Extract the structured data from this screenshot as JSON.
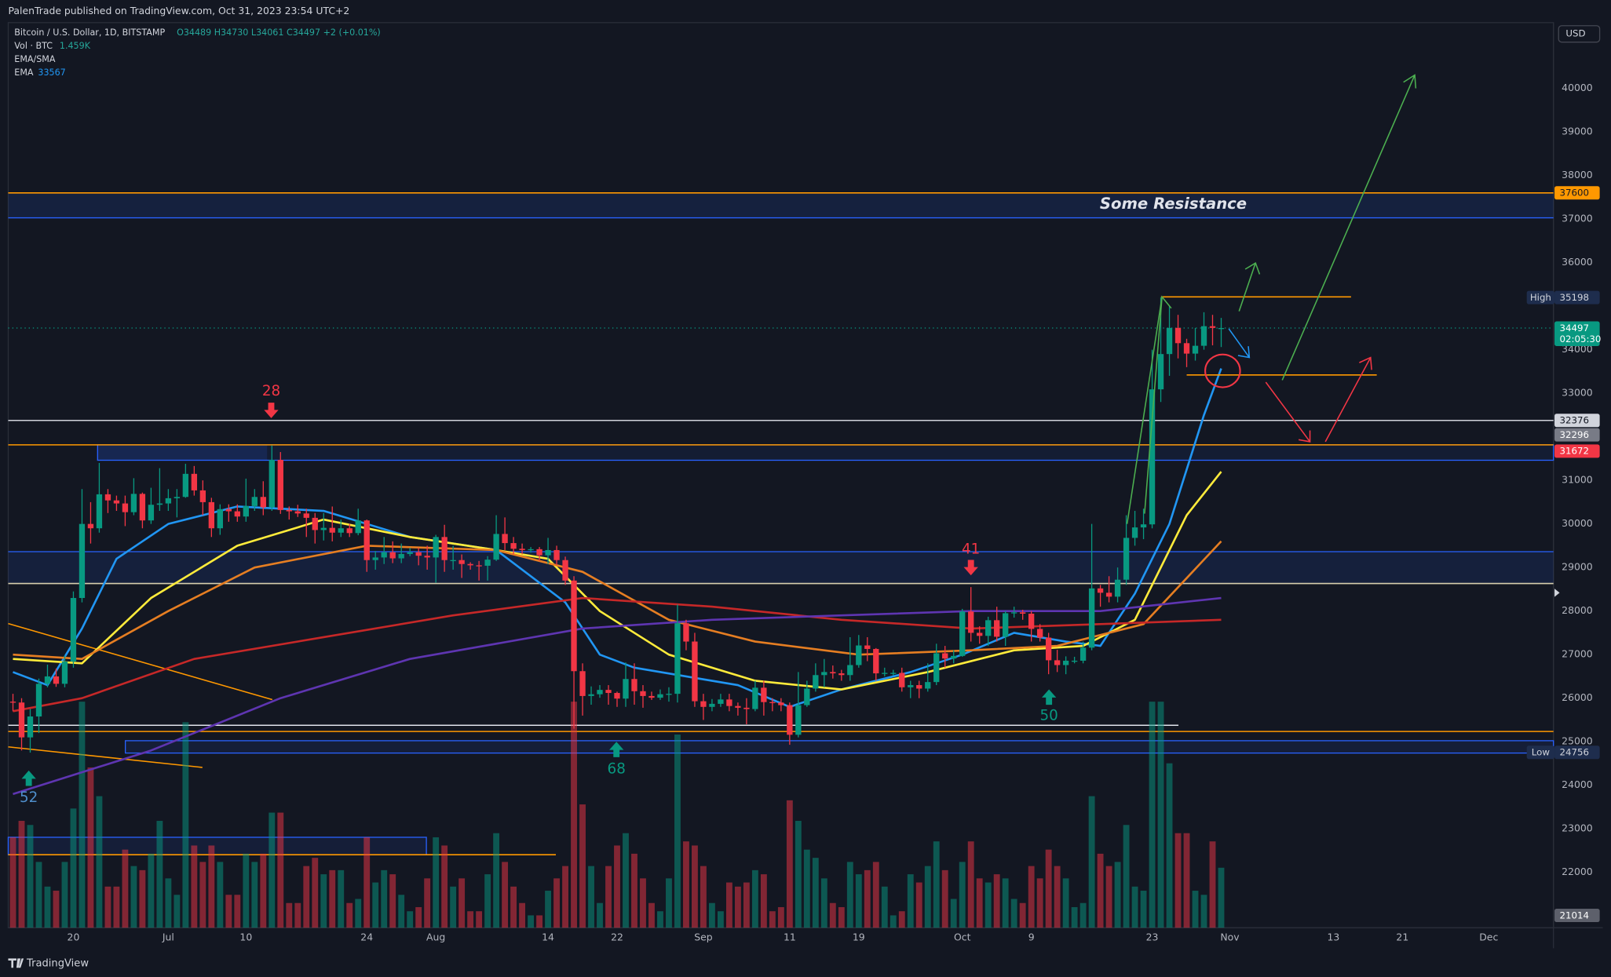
{
  "header": {
    "publisher": "PalenTrade published on TradingView.com, Oct 31, 2023 23:54 UTC+2"
  },
  "footer": {
    "brand": "TradingView"
  },
  "chart_data": {
    "type": "candlestick",
    "legend": {
      "symbol": "Bitcoin / U.S. Dollar, 1D, BITSTAMP",
      "ohlc": "O34489 H34730 L34061 C34497 +2 (+0.01%)",
      "vol": "Vol · BTC",
      "vol_value": "1.459K",
      "ema_sma": "EMA/SMA",
      "ema": "EMA"
    },
    "currency": "USD",
    "resistance_label": "Some Resistance",
    "annotations": [
      28,
      41,
      50,
      68,
      52
    ],
    "up_color": "#089981",
    "down_color": "#f23645",
    "xlim": [
      163.45,
      342.5
    ],
    "ylim": [
      20731,
      41509
    ],
    "volume_lim": [
      0,
      8
    ],
    "xticks": [
      {
        "value": 171,
        "label": "20"
      },
      {
        "value": 182,
        "label": "Jul"
      },
      {
        "value": 191,
        "label": "10"
      },
      {
        "value": 205,
        "label": "24"
      },
      {
        "value": 213,
        "label": "Aug"
      },
      {
        "value": 226,
        "label": "14"
      },
      {
        "value": 234,
        "label": "22"
      },
      {
        "value": 244,
        "label": "Sep"
      },
      {
        "value": 254,
        "label": "11"
      },
      {
        "value": 262,
        "label": "19"
      },
      {
        "value": 274,
        "label": "Oct"
      },
      {
        "value": 282,
        "label": "9"
      },
      {
        "value": 296,
        "label": "23"
      },
      {
        "value": 305,
        "label": "Nov"
      },
      {
        "value": 317,
        "label": "13"
      },
      {
        "value": 325,
        "label": "21"
      },
      {
        "value": 335,
        "label": "Dec"
      }
    ],
    "yticks": [
      22000,
      23000,
      24000,
      25000,
      26000,
      27000,
      28000,
      29000,
      30000,
      31000,
      32000,
      33000,
      34000,
      35000,
      36000,
      37000,
      38000,
      39000,
      40000
    ],
    "price_labels": [
      {
        "value": 37600,
        "color": "#ff9800",
        "text_color": "#131722",
        "line_style": "solid"
      },
      {
        "value": 35198,
        "tag": "High",
        "color": "#1e2d4d",
        "text_color": "#d1d4dc"
      },
      {
        "value": 34497,
        "sub": "02:05:30",
        "color": "#089981",
        "text_color": "#ffffff",
        "line_style": "dotted"
      },
      {
        "value": 32376,
        "color": "#d1d4dc",
        "text_color": "#131722",
        "line_style": "solid"
      },
      {
        "value": 32296,
        "color": "#787b86",
        "text_color": "#ffffff"
      },
      {
        "value": 31672,
        "color": "#f23645",
        "text_color": "#ffffff"
      },
      {
        "value": 24756,
        "tag": "Low",
        "color": "#1e2d4d",
        "text_color": "#d1d4dc"
      },
      {
        "value": 21014,
        "color": "#5d606b",
        "text_color": "#ffffff"
      }
    ],
    "x": [
      164,
      165,
      166,
      167,
      168,
      169,
      170,
      171,
      172,
      173,
      174,
      175,
      176,
      177,
      178,
      179,
      180,
      181,
      182,
      183,
      184,
      185,
      186,
      187,
      188,
      189,
      190,
      191,
      192,
      193,
      194,
      195,
      196,
      197,
      198,
      199,
      200,
      201,
      202,
      203,
      204,
      205,
      206,
      207,
      208,
      209,
      210,
      211,
      212,
      213,
      214,
      215,
      216,
      217,
      218,
      219,
      220,
      221,
      222,
      223,
      224,
      225,
      226,
      227,
      228,
      229,
      230,
      231,
      232,
      233,
      234,
      235,
      236,
      237,
      238,
      239,
      240,
      241,
      242,
      243,
      244,
      245,
      246,
      247,
      248,
      249,
      250,
      251,
      252,
      253,
      254,
      255,
      256,
      257,
      258,
      259,
      260,
      261,
      262,
      263,
      264,
      265,
      266,
      267,
      268,
      269,
      270,
      271,
      272,
      273,
      274,
      275,
      276,
      277,
      278,
      279,
      280,
      281,
      282,
      283,
      284,
      285,
      286,
      287,
      288,
      289,
      290,
      291,
      292,
      293,
      294,
      295,
      296,
      297,
      298,
      299,
      300,
      301,
      302,
      303,
      304
    ],
    "open": [
      25920,
      25900,
      25100,
      25580,
      26330,
      26500,
      26330,
      26840,
      28300,
      30000,
      29900,
      30680,
      30540,
      30470,
      30270,
      30690,
      30080,
      30440,
      30470,
      30590,
      30620,
      31150,
      30770,
      30500,
      29900,
      30340,
      30290,
      30170,
      30410,
      30620,
      30380,
      31470,
      30320,
      30290,
      30240,
      30140,
      29860,
      29910,
      29800,
      29900,
      29790,
      30080,
      29170,
      29230,
      29350,
      29210,
      29310,
      29350,
      29270,
      29230,
      29700,
      29170,
      29170,
      29080,
      29050,
      29040,
      29180,
      29770,
      29560,
      29430,
      29400,
      29420,
      29280,
      29400,
      29170,
      28700,
      26620,
      26050,
      26090,
      26190,
      26120,
      25990,
      26440,
      26160,
      26050,
      26010,
      26090,
      26100,
      27720,
      27300,
      25930,
      25800,
      25870,
      25970,
      25820,
      25780,
      25750,
      26240,
      25910,
      25900,
      25840,
      25160,
      25840,
      26220,
      26530,
      26600,
      26570,
      26530,
      26760,
      27210,
      27130,
      26570,
      26580,
      26580,
      26250,
      26300,
      26220,
      26370,
      27030,
      26910,
      26970,
      27990,
      27500,
      27430,
      27790,
      27410,
      27950,
      27970,
      27940,
      27590,
      27390,
      26870,
      26760,
      26860,
      26860,
      27160,
      28520,
      28420,
      28330,
      28720,
      29680,
      29920,
      29990,
      33090,
      33900,
      34500,
      34150,
      33910,
      34090,
      34540,
      34489
    ],
    "high": [
      26100,
      26000,
      25750,
      26450,
      26770,
      26680,
      26980,
      28450,
      30800,
      30500,
      31400,
      30800,
      30650,
      30650,
      31050,
      30720,
      30830,
      31280,
      30800,
      30800,
      31380,
      31330,
      31000,
      30600,
      30450,
      30450,
      30450,
      31040,
      30800,
      30980,
      31800,
      31650,
      30400,
      30440,
      30350,
      30250,
      30250,
      30400,
      30100,
      30000,
      30350,
      30100,
      29380,
      29700,
      29600,
      29550,
      29450,
      29450,
      29500,
      29750,
      29980,
      29500,
      29300,
      29120,
      29150,
      29260,
      30200,
      30150,
      29700,
      29550,
      29470,
      29470,
      29680,
      29500,
      29250,
      28800,
      26800,
      26270,
      26300,
      26300,
      26150,
      26820,
      26800,
      26300,
      26150,
      26200,
      26250,
      28150,
      27800,
      27500,
      26100,
      25980,
      26100,
      26100,
      25900,
      26000,
      26400,
      26400,
      26000,
      26000,
      25900,
      26600,
      26400,
      26800,
      26900,
      26750,
      26650,
      27400,
      27450,
      27400,
      27150,
      26700,
      26650,
      26700,
      26400,
      26400,
      26800,
      27250,
      27200,
      27100,
      28050,
      28550,
      27650,
      27870,
      28100,
      28000,
      28100,
      28030,
      28000,
      27700,
      27500,
      27110,
      26960,
      26950,
      27300,
      30000,
      28600,
      28800,
      29000,
      30200,
      30300,
      30350,
      34000,
      35198,
      35000,
      34800,
      34250,
      34500,
      34860,
      34800,
      34730
    ],
    "low": [
      25700,
      24800,
      24750,
      25200,
      26250,
      26260,
      26250,
      26700,
      28200,
      29550,
      29800,
      30250,
      30300,
      29950,
      30200,
      29900,
      30000,
      30300,
      30300,
      30150,
      30600,
      30650,
      30200,
      29700,
      29750,
      30050,
      30050,
      30050,
      30300,
      30200,
      30300,
      30230,
      30100,
      30160,
      29700,
      29550,
      29620,
      29600,
      29700,
      29700,
      29740,
      28900,
      28950,
      29080,
      29100,
      29100,
      29260,
      29050,
      28950,
      28650,
      28900,
      28950,
      28760,
      28950,
      28700,
      28700,
      29150,
      29400,
      29300,
      29300,
      29340,
      29150,
      29080,
      29050,
      28600,
      25300,
      25600,
      25850,
      26010,
      25850,
      25800,
      25800,
      25850,
      25780,
      25960,
      25960,
      25920,
      25900,
      27100,
      25800,
      25500,
      25700,
      25800,
      25700,
      25600,
      25400,
      25700,
      25600,
      25700,
      25700,
      24930,
      25100,
      25800,
      26150,
      26250,
      26450,
      26400,
      26400,
      26700,
      26850,
      26400,
      26500,
      26520,
      26150,
      26000,
      26000,
      26150,
      26300,
      26700,
      26800,
      26950,
      27300,
      27250,
      27200,
      27300,
      27200,
      27850,
      27800,
      27300,
      27300,
      26550,
      26600,
      26550,
      26800,
      26800,
      27100,
      28100,
      28200,
      28200,
      28600,
      29500,
      29650,
      29900,
      32800,
      33400,
      33800,
      33600,
      33750,
      34000,
      34100,
      34061
    ],
    "close": [
      25900,
      25100,
      25580,
      26330,
      26500,
      26330,
      26840,
      28300,
      30000,
      29900,
      30680,
      30540,
      30470,
      30270,
      30690,
      30080,
      30440,
      30470,
      30590,
      30620,
      31150,
      30770,
      30500,
      29900,
      30340,
      30290,
      30170,
      30410,
      30620,
      30380,
      31470,
      30320,
      30290,
      30240,
      30140,
      29860,
      29910,
      29800,
      29900,
      29790,
      30080,
      29170,
      29230,
      29350,
      29210,
      29310,
      29350,
      29270,
      29230,
      29700,
      29170,
      29170,
      29080,
      29050,
      29040,
      29180,
      29770,
      29560,
      29430,
      29400,
      29420,
      29280,
      29400,
      29170,
      28700,
      26620,
      26050,
      26090,
      26190,
      26120,
      25990,
      26440,
      26160,
      26050,
      26010,
      26090,
      26100,
      27720,
      27300,
      25930,
      25800,
      25870,
      25970,
      25820,
      25780,
      25750,
      26240,
      25910,
      25900,
      25840,
      25160,
      25840,
      26220,
      26530,
      26600,
      26570,
      26530,
      26760,
      27210,
      27130,
      26570,
      26580,
      26580,
      26250,
      26300,
      26220,
      26370,
      27030,
      26910,
      26970,
      27990,
      27500,
      27430,
      27790,
      27410,
      27950,
      27970,
      27940,
      27590,
      27390,
      26870,
      26760,
      26860,
      26860,
      27160,
      28520,
      28420,
      28330,
      28720,
      29680,
      29920,
      29990,
      33090,
      33900,
      34500,
      34150,
      33910,
      34090,
      34540,
      34500,
      34497
    ],
    "volume": [
      2.2,
      2.6,
      2.5,
      1.6,
      1.0,
      0.9,
      1.6,
      2.9,
      5.5,
      3.9,
      3.2,
      1.0,
      1.0,
      1.9,
      1.5,
      1.4,
      1.8,
      2.6,
      1.2,
      0.8,
      5.0,
      2.0,
      1.6,
      2.0,
      1.6,
      0.8,
      0.8,
      1.8,
      1.6,
      1.8,
      2.8,
      2.8,
      0.6,
      0.6,
      1.5,
      1.7,
      1.3,
      1.4,
      1.4,
      0.6,
      0.7,
      2.2,
      1.1,
      1.4,
      1.3,
      0.8,
      0.4,
      0.5,
      1.2,
      2.2,
      2.0,
      1.0,
      1.2,
      0.4,
      0.4,
      1.3,
      2.3,
      1.6,
      1.0,
      0.6,
      0.3,
      0.3,
      0.9,
      1.2,
      1.5,
      5.5,
      3.0,
      1.5,
      0.6,
      1.5,
      2.0,
      2.3,
      1.8,
      1.2,
      0.6,
      0.4,
      1.2,
      4.7,
      2.1,
      2.0,
      1.5,
      0.6,
      0.4,
      1.1,
      1.0,
      1.1,
      1.4,
      1.3,
      0.4,
      0.5,
      3.1,
      2.6,
      1.9,
      1.7,
      1.2,
      0.6,
      0.5,
      1.6,
      1.3,
      1.4,
      1.6,
      1.0,
      0.3,
      0.4,
      1.3,
      1.1,
      1.5,
      2.1,
      1.4,
      0.7,
      1.6,
      2.1,
      1.2,
      1.1,
      1.3,
      1.2,
      0.7,
      0.6,
      1.5,
      1.2,
      1.9,
      1.5,
      1.2,
      0.5,
      0.6,
      3.2,
      1.8,
      1.5,
      1.6,
      2.5,
      1.0,
      0.9,
      5.5,
      5.5,
      4.0,
      2.3,
      2.3,
      0.9,
      0.8,
      2.1,
      1.459
    ],
    "moving_averages": [
      {
        "color": "#2196f3",
        "x": [
          164,
          168,
          172,
          176,
          182,
          190,
          200,
          210,
          220,
          228,
          232,
          236,
          242,
          248,
          254,
          260,
          268,
          274,
          280,
          286,
          290,
          294,
          298,
          302,
          304
        ],
        "values": [
          26600,
          26300,
          27600,
          29200,
          30000,
          30400,
          30300,
          29700,
          29400,
          28200,
          27000,
          26700,
          26500,
          26300,
          25800,
          26200,
          26600,
          27000,
          27500,
          27300,
          27200,
          28400,
          30000,
          32500,
          33567
        ]
      },
      {
        "color": "#ffeb3b",
        "x": [
          164,
          172,
          180,
          190,
          200,
          210,
          220,
          226,
          232,
          240,
          250,
          260,
          270,
          280,
          288,
          294,
          300,
          304
        ],
        "values": [
          26900,
          26800,
          28300,
          29500,
          30100,
          29700,
          29400,
          29200,
          28000,
          27000,
          26400,
          26200,
          26600,
          27100,
          27200,
          27800,
          30200,
          31200
        ]
      },
      {
        "color": "#e67e22",
        "x": [
          164,
          172,
          182,
          192,
          205,
          220,
          230,
          240,
          250,
          262,
          275,
          285,
          295,
          304
        ],
        "values": [
          27000,
          26900,
          28000,
          29000,
          29500,
          29400,
          28900,
          27800,
          27300,
          27000,
          27100,
          27200,
          27700,
          29600
        ]
      },
      {
        "color": "#c62828",
        "x": [
          164,
          172,
          185,
          200,
          215,
          230,
          245,
          260,
          275,
          290,
          304
        ],
        "values": [
          25700,
          26000,
          26900,
          27400,
          27900,
          28300,
          28100,
          27800,
          27600,
          27700,
          27800
        ]
      },
      {
        "color": "#5e35b1",
        "x": [
          164,
          180,
          195,
          210,
          230,
          245,
          260,
          275,
          290,
          304
        ],
        "values": [
          23800,
          24800,
          26000,
          26900,
          27600,
          27800,
          27900,
          28000,
          28000,
          28300
        ]
      }
    ]
  }
}
